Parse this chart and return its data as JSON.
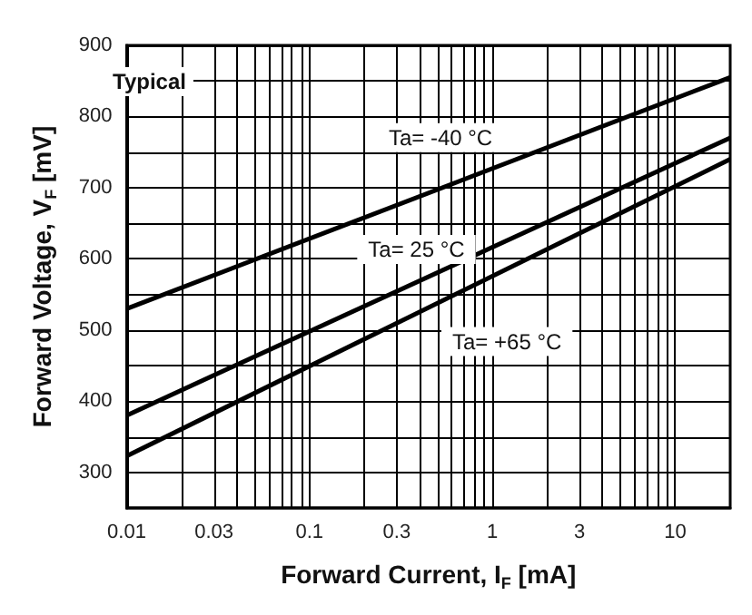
{
  "chart_data": {
    "type": "line",
    "xlabel": "Forward Current, I$_{F}$ [mA]",
    "ylabel": "Forward Voltage, V$_{F}$ [mV]",
    "annotations": [
      "Typical"
    ],
    "log": "x",
    "grid": true,
    "marker": "none",
    "line_style": "solid",
    "xlim": [
      0.01,
      20
    ],
    "ylim": [
      250,
      900
    ],
    "xticks": [
      0.01,
      {
        "value": 0.02,
        "label": null
      },
      0.03,
      {
        "value": 0.04,
        "label": null
      },
      {
        "value": 0.05,
        "label": null
      },
      {
        "value": 0.06,
        "label": null
      },
      {
        "value": 0.07,
        "label": null
      },
      {
        "value": 0.08,
        "label": null
      },
      {
        "value": 0.09,
        "label": null
      },
      0.1,
      {
        "value": 0.2,
        "label": null
      },
      0.3,
      {
        "value": 0.4,
        "label": null
      },
      {
        "value": 0.5,
        "label": null
      },
      {
        "value": 0.6,
        "label": null
      },
      {
        "value": 0.7,
        "label": null
      },
      {
        "value": 0.8,
        "label": null
      },
      {
        "value": 0.9,
        "label": null
      },
      1,
      {
        "value": 2,
        "label": null
      },
      3,
      {
        "value": 4,
        "label": null
      },
      {
        "value": 5,
        "label": null
      },
      {
        "value": 6,
        "label": null
      },
      {
        "value": 7,
        "label": null
      },
      {
        "value": 8,
        "label": null
      },
      {
        "value": 9,
        "label": null
      },
      10
    ],
    "yticks": [
      300,
      {
        "value": 350,
        "label": null
      },
      400,
      {
        "value": 450,
        "label": null
      },
      500,
      {
        "value": 550,
        "label": null
      },
      600,
      {
        "value": 650,
        "label": null
      },
      700,
      {
        "value": 750,
        "label": null
      },
      800,
      {
        "value": 850,
        "label": null
      },
      900
    ],
    "x": [
      0.01,
      20
    ],
    "series": [
      {
        "name": "Ta= -40 °C",
        "color": "#000000",
        "values": [
          530,
          855
        ]
      },
      {
        "name": "Ta= 25 °C",
        "color": "#000000",
        "values": [
          380,
          770
        ]
      },
      {
        "name": "Ta= +65 °C",
        "color": "#000000",
        "values": [
          323,
          740
        ]
      }
    ]
  }
}
